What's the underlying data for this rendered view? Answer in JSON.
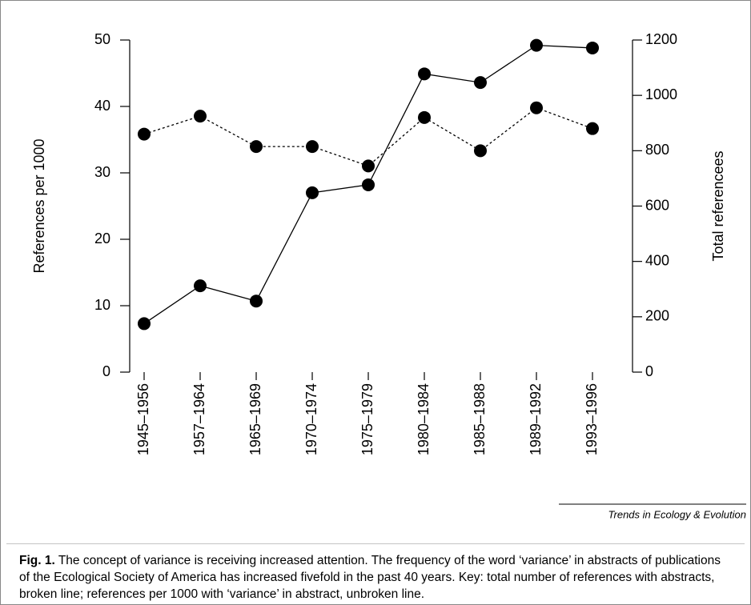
{
  "chart_data": {
    "type": "line",
    "categories": [
      "1945–1956",
      "1957–1964",
      "1965–1969",
      "1970–1974",
      "1975–1979",
      "1980–1984",
      "1985–1988",
      "1989–1992",
      "1993–1996"
    ],
    "ylabel": "References per 1000",
    "y2label": "Total referencees",
    "ylim": [
      0,
      50
    ],
    "yticks": [
      0,
      10,
      20,
      30,
      40,
      50
    ],
    "y2lim": [
      0,
      1200
    ],
    "y2ticks": [
      0,
      200,
      400,
      600,
      800,
      1000,
      1200
    ],
    "series": [
      {
        "color": "#000000",
        "linestyle": "solid",
        "values": [
          7.3,
          13.0,
          10.7,
          27.0,
          28.2,
          44.9,
          43.6,
          49.2,
          48.8
        ]
      },
      {
        "color": "#000000",
        "linestyle": "dotted",
        "axis": "y2",
        "values": [
          860,
          925,
          815,
          815,
          745,
          920,
          800,
          955,
          880
        ]
      }
    ],
    "source": "Trends in Ecology & Evolution",
    "caption_label": "Fig. 1.",
    "caption": "The concept of variance is receiving increased attention. The frequency of the word ‘variance’ in abstracts of publications of the Ecological Society of America has increased fivefold in the past 40 years. Key: total number of references with abstracts, broken line; references per 1000 with ‘variance’ in abstract, unbroken line."
  }
}
